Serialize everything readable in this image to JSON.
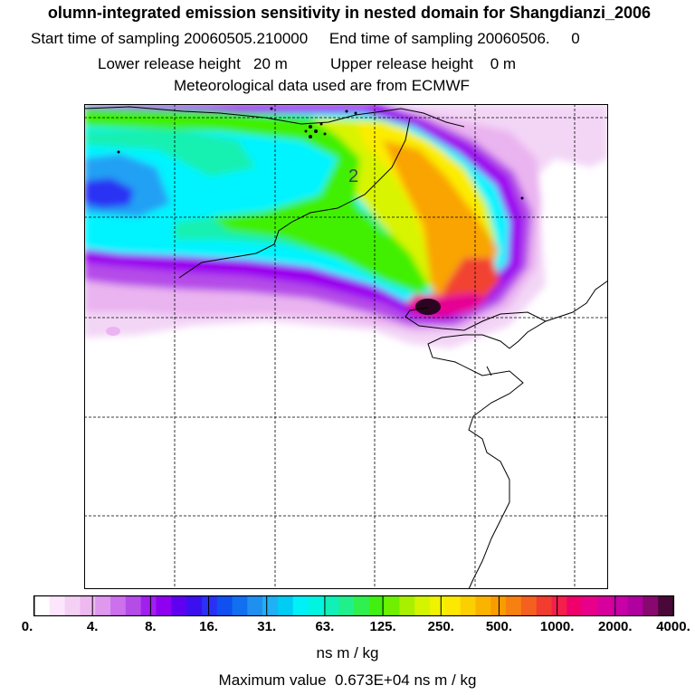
{
  "header": {
    "title": "olumn-integrated emission sensitivity in nested domain for Shangdianzi_2006",
    "sampling_line": "Start time of sampling 20060505.210000     End time of sampling 20060506.     0",
    "release_line": "Lower release height   20 m          Upper release height    0 m",
    "met_line": "Meteorological data used are from ECMWF"
  },
  "map": {
    "contour_label": "2",
    "colors": {
      "lightest": "#f3d6f6",
      "light_pink": "#eab4f0",
      "violet": "#b54ce8",
      "purple": "#9b00f0",
      "blue": "#2a30f4",
      "sky": "#22a0f4",
      "cyan": "#00f4ff",
      "aquamarine": "#18f0b0",
      "green": "#40f000",
      "yellow_green": "#d8f400",
      "yellow": "#fcec00",
      "orange": "#f9a400",
      "red_orange": "#f24230",
      "magenta": "#e60094",
      "dark": "#2a0420"
    }
  },
  "colorbar": {
    "tick_labels": [
      "0.",
      "4.",
      "8.",
      "16.",
      "31.",
      "63.",
      "125.",
      "250.",
      "500.",
      "1000.",
      "2000.",
      "4000."
    ],
    "colors": [
      "#ffffff",
      "#fbe6fb",
      "#f5d0f5",
      "#eeb8f0",
      "#de98ee",
      "#cc70ec",
      "#b54ce8",
      "#a020ee",
      "#9000f0",
      "#6000f0",
      "#3a10f0",
      "#2a30f4",
      "#1050f0",
      "#1070f0",
      "#2090f0",
      "#20b0f4",
      "#00ccf4",
      "#00f0f8",
      "#00f4e0",
      "#10f0b8",
      "#20f08c",
      "#30f050",
      "#40f010",
      "#70f000",
      "#a8f000",
      "#d4f400",
      "#f0f200",
      "#fce800",
      "#fcd000",
      "#fab400",
      "#f89c00",
      "#f68010",
      "#f46020",
      "#f23c30",
      "#f2204a",
      "#f0006c",
      "#e8008a",
      "#d8009c",
      "#c800a8",
      "#b000a0",
      "#880870",
      "#4a0838"
    ],
    "unit": "ns m / kg"
  },
  "footer": {
    "max_value": "Maximum value  0.673E+04 ns m / kg"
  }
}
